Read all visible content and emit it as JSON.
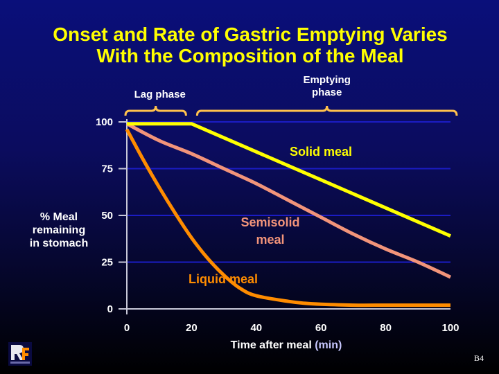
{
  "chart_data": {
    "type": "line",
    "title_lines": [
      "Onset and Rate of Gastric Emptying Varies",
      "With the Composition of the Meal"
    ],
    "xlabel": "Time after meal",
    "xlabel_unit": "(min)",
    "ylabel_lines": [
      "% Meal",
      "remaining",
      "in stomach"
    ],
    "xlim": [
      0,
      100
    ],
    "ylim": [
      0,
      100
    ],
    "x_ticks": [
      0,
      20,
      40,
      60,
      80,
      100
    ],
    "y_ticks": [
      0,
      25,
      50,
      75,
      100
    ],
    "grid": true,
    "series": [
      {
        "name": "Solid meal",
        "color": "#ffff00",
        "x": [
          0,
          20,
          100
        ],
        "y": [
          99,
          99,
          39
        ]
      },
      {
        "name": "Semisolid meal",
        "label_lines": [
          "Semisolid",
          "meal"
        ],
        "color": "#f2947a",
        "x": [
          0,
          10,
          20,
          30,
          40,
          50,
          60,
          70,
          80,
          90,
          100
        ],
        "y": [
          99,
          90,
          83,
          75,
          67,
          58,
          49,
          40,
          32,
          25,
          17
        ]
      },
      {
        "name": "Liquid meal",
        "color": "#ff8c00",
        "x": [
          0,
          5,
          10,
          15,
          20,
          25,
          30,
          35,
          40,
          50,
          55,
          60,
          70,
          80,
          90,
          100
        ],
        "y": [
          96,
          80,
          65,
          51,
          38,
          27,
          18,
          11,
          7,
          4,
          3,
          2.5,
          2,
          2,
          2,
          2
        ]
      }
    ],
    "annotations": [
      {
        "name": "lag-phase",
        "label_lines": [
          "Lag phase"
        ],
        "x_range": [
          0,
          20
        ]
      },
      {
        "name": "emptying-phase",
        "label_lines": [
          "Emptying",
          "phase"
        ],
        "x_range": [
          20,
          100
        ]
      }
    ]
  },
  "footer": {
    "slide_number": "B4",
    "logo_icon": "organization-logo-icon"
  }
}
